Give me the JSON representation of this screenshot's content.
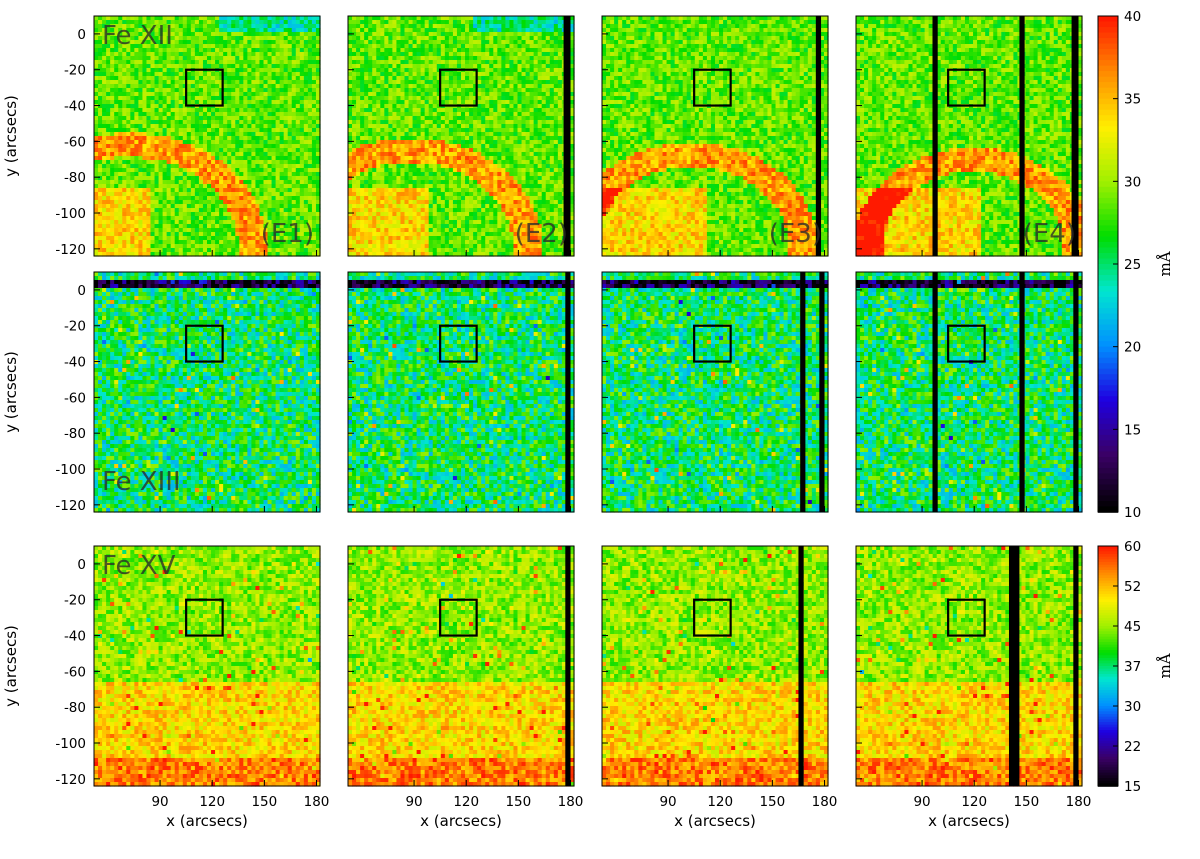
{
  "figure": {
    "x_axis_title": "x (arcsecs)",
    "y_axis_title": "y (arcsecs)",
    "x_ticks": [
      "90",
      "120",
      "150",
      "180"
    ],
    "y_ticks": [
      "0",
      "-20",
      "-40",
      "-60",
      "-80",
      "-100",
      "-120"
    ],
    "x_range": [
      52,
      182
    ],
    "y_range": [
      -124,
      10
    ]
  },
  "rows": [
    {
      "name": "Fe XII",
      "ion_label": "Fe XII",
      "ion_label_panel": "top",
      "colorbar": {
        "unit": "mÅ",
        "ticks": [
          "40",
          "35",
          "30",
          "25",
          "20",
          "15",
          "10"
        ],
        "range": [
          10,
          40
        ]
      },
      "panels": [
        {
          "label": "(E1)",
          "box": {
            "x": [
              105,
              126
            ],
            "y": [
              -40,
              -20
            ]
          }
        },
        {
          "label": "(E2)",
          "box": {
            "x": [
              105,
              126
            ],
            "y": [
              -40,
              -20
            ]
          }
        },
        {
          "label": "(E3)",
          "box": {
            "x": [
              105,
              126
            ],
            "y": [
              -40,
              -20
            ]
          }
        },
        {
          "label": "(E4)",
          "box": {
            "x": [
              105,
              126
            ],
            "y": [
              -40,
              -20
            ]
          }
        }
      ]
    },
    {
      "name": "Fe XIII",
      "ion_label": "Fe XIII",
      "ion_label_panel": "bottom",
      "colorbar": null,
      "panels": [
        {
          "label": "",
          "box": {
            "x": [
              105,
              126
            ],
            "y": [
              -40,
              -20
            ]
          }
        },
        {
          "label": "",
          "box": {
            "x": [
              105,
              126
            ],
            "y": [
              -40,
              -20
            ]
          }
        },
        {
          "label": "",
          "box": {
            "x": [
              105,
              126
            ],
            "y": [
              -40,
              -20
            ]
          }
        },
        {
          "label": "",
          "box": {
            "x": [
              105,
              126
            ],
            "y": [
              -40,
              -20
            ]
          }
        }
      ]
    },
    {
      "name": "Fe XV",
      "ion_label": "Fe XV",
      "ion_label_panel": "top",
      "colorbar": {
        "unit": "mÅ",
        "ticks": [
          "60",
          "52",
          "45",
          "37",
          "30",
          "22",
          "15"
        ],
        "range": [
          15,
          60
        ]
      },
      "panels": [
        {
          "label": "",
          "box": {
            "x": [
              105,
              126
            ],
            "y": [
              -40,
              -20
            ]
          }
        },
        {
          "label": "",
          "box": {
            "x": [
              105,
              126
            ],
            "y": [
              -40,
              -20
            ]
          }
        },
        {
          "label": "",
          "box": {
            "x": [
              105,
              126
            ],
            "y": [
              -40,
              -20
            ]
          }
        },
        {
          "label": "",
          "box": {
            "x": [
              105,
              126
            ],
            "y": [
              -40,
              -20
            ]
          }
        }
      ]
    }
  ],
  "colormap": [
    "#000000",
    "#3a0066",
    "#1f00e0",
    "#0090ff",
    "#00e6d0",
    "#00dd00",
    "#a0f000",
    "#ffef00",
    "#ff8c00",
    "#ff1a00"
  ]
}
